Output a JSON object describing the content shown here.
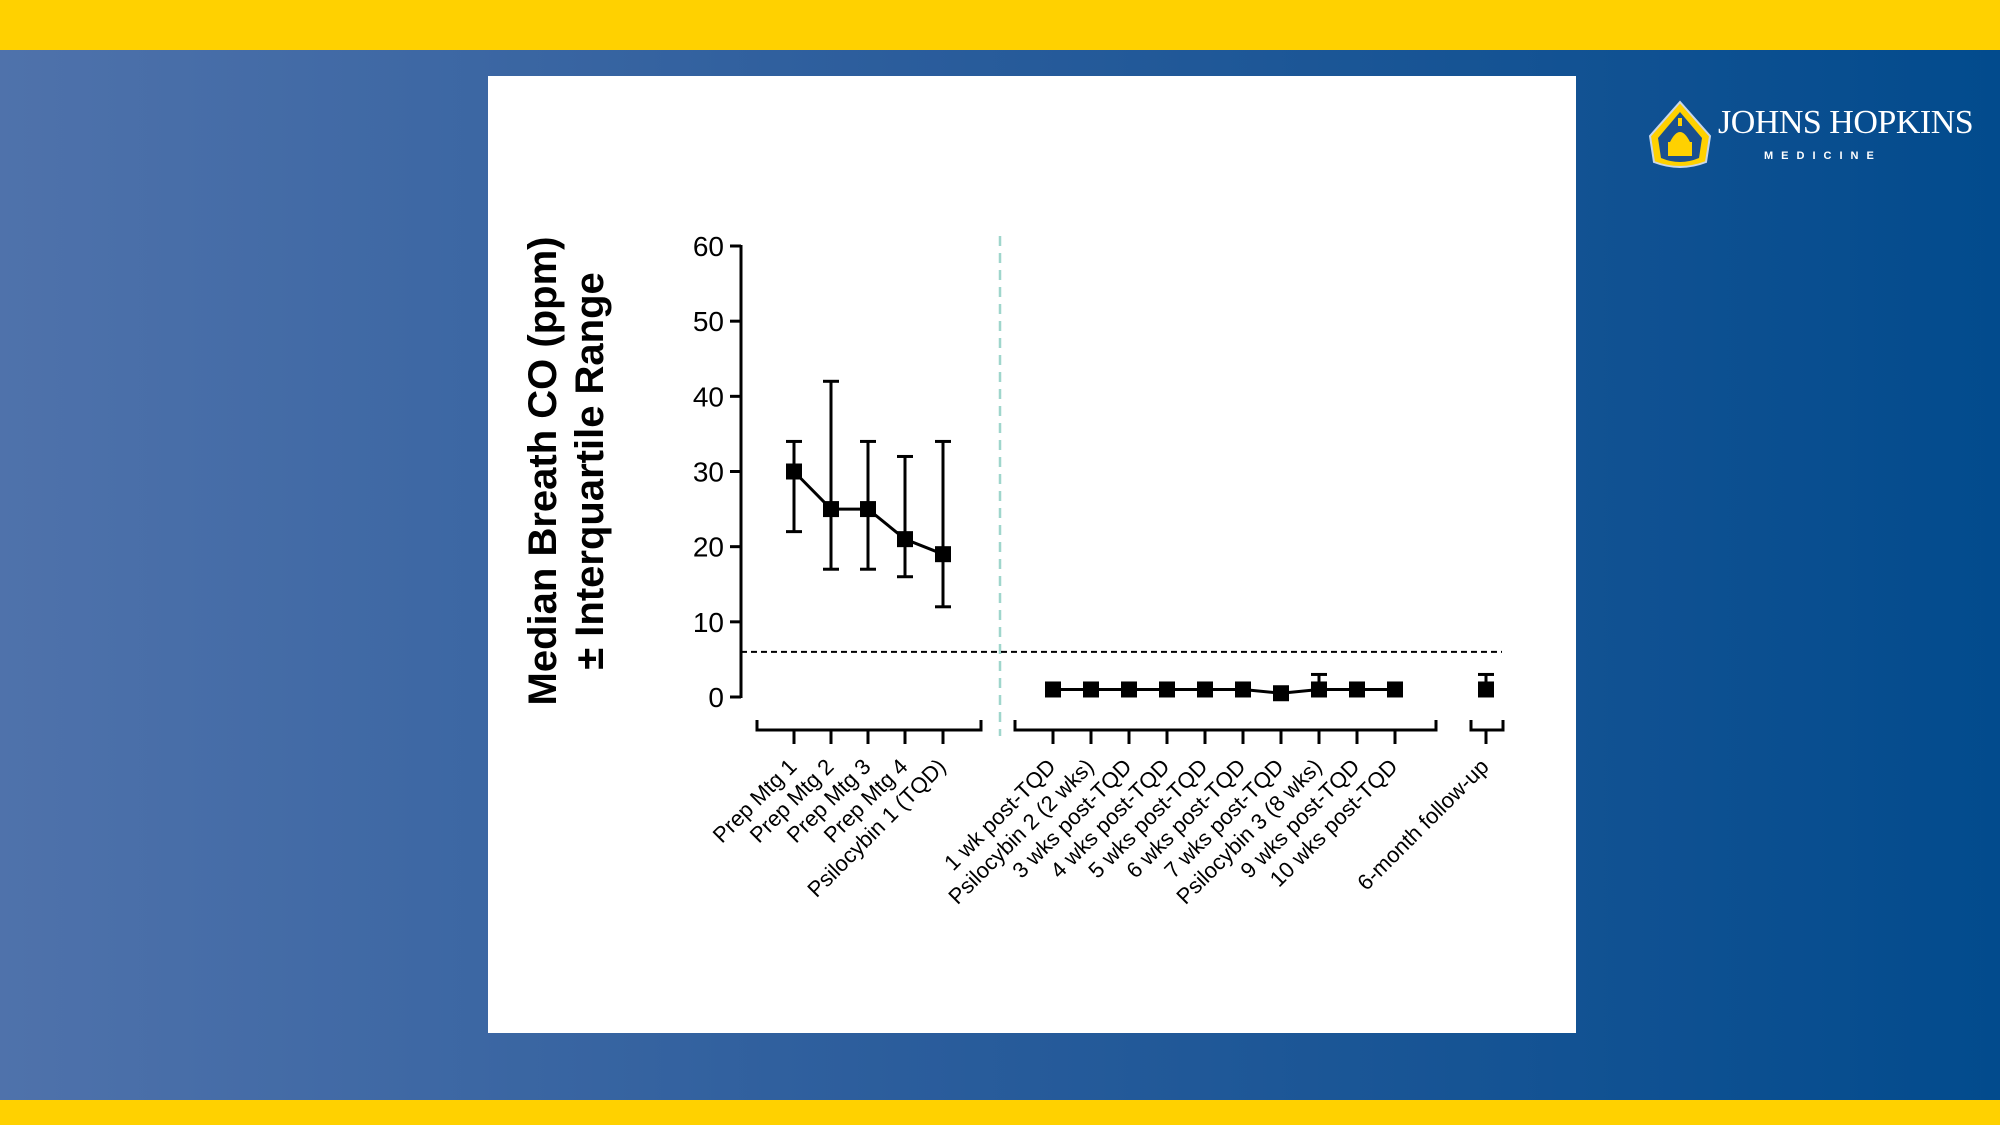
{
  "slide": {
    "accent_yellow": "#ffd100",
    "background_blue": "#02498d"
  },
  "logo": {
    "icon": "johns-hopkins-shield-icon",
    "name": "JOHNS HOPKINS",
    "sub": "MEDICINE"
  },
  "chart_data": {
    "type": "line",
    "title": "",
    "ylabel_line1": "Median Breath CO (ppm)",
    "ylabel_line2": "± Interquartile Range",
    "xlabel": "",
    "ylim": [
      0,
      60
    ],
    "yticks": [
      "0",
      "10",
      "20",
      "30",
      "40",
      "50",
      "60"
    ],
    "threshold_line": 6,
    "error_bars": "interquartile range",
    "groups": [
      {
        "categories": [
          "Prep Mtg 1",
          "Prep Mtg 2",
          "Prep Mtg 3",
          "Prep Mtg 4",
          "Psilocybin 1 (TQD)"
        ],
        "median": [
          30,
          25,
          25,
          21,
          19
        ],
        "q1": [
          22,
          17,
          17,
          16,
          12
        ],
        "q3": [
          34,
          42,
          34,
          32,
          34
        ]
      },
      {
        "categories": [
          "1 wk post-TQD",
          "Psilocybin 2 (2 wks)",
          "3 wks post-TQD",
          "4 wks post-TQD",
          "5 wks post-TQD",
          "6 wks post-TQD",
          "7 wks post-TQD",
          "Psilocybin 3 (8 wks)",
          "9 wks post-TQD",
          "10 wks post-TQD"
        ],
        "median": [
          1,
          1,
          1,
          1,
          1,
          1,
          0.5,
          1,
          1,
          1
        ],
        "q1": [
          1,
          1,
          1,
          1,
          1,
          1,
          0.5,
          0.5,
          1,
          1
        ],
        "q3": [
          1,
          1,
          1,
          1,
          1,
          1,
          0.5,
          3,
          1,
          1
        ]
      },
      {
        "categories": [
          "6-month follow-up"
        ],
        "median": [
          1
        ],
        "q1": [
          1
        ],
        "q3": [
          3
        ]
      }
    ]
  }
}
